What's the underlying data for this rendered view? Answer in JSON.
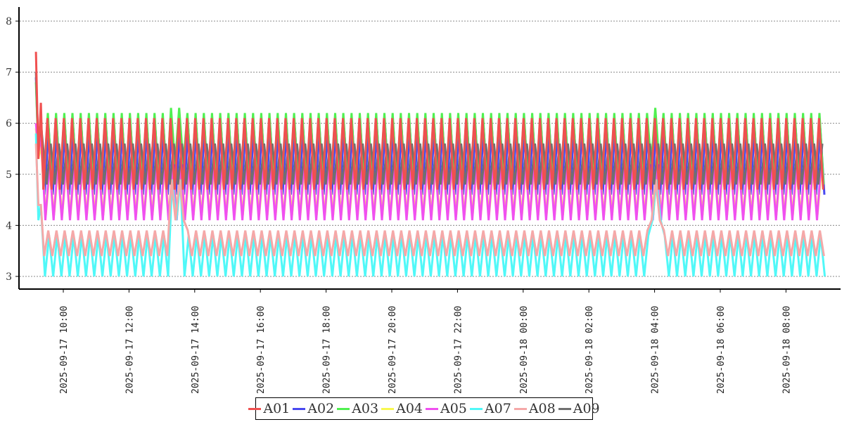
{
  "chart_data": {
    "type": "line",
    "title": "",
    "xlabel": "",
    "ylabel": "",
    "ylim": [
      2.75,
      8.3
    ],
    "yticks": [
      "3",
      "4",
      "5",
      "6",
      "7",
      "8"
    ],
    "grid": "horizontal dashed",
    "legend_placement": "bottom-center",
    "x_start": "2025-09-17 09:10",
    "x_end": "2025-09-18 09:12",
    "step_minutes": 7.5,
    "xticks": [
      "2025-09-17 10:00",
      "2025-09-17 12:00",
      "2025-09-17 14:00",
      "2025-09-17 16:00",
      "2025-09-17 18:00",
      "2025-09-17 20:00",
      "2025-09-17 22:00",
      "2025-09-18 00:00",
      "2025-09-18 02:00",
      "2025-09-18 04:00",
      "2025-09-18 06:00",
      "2025-09-18 08:00"
    ],
    "disturbances_minutes_from_start": [
      [
        245,
        270
      ],
      [
        1120,
        1145
      ]
    ],
    "series": [
      {
        "name": "A01",
        "color": "#f05050",
        "initial": [
          7.4,
          5.3,
          6.4
        ],
        "high": 6.1,
        "low": 4.7,
        "phase": 0
      },
      {
        "name": "A02",
        "color": "#4848f0",
        "initial": [
          6.9,
          5.4,
          6.0
        ],
        "high": 5.9,
        "low": 4.6,
        "phase": 0.3
      },
      {
        "name": "A03",
        "color": "#50f050",
        "initial": [
          6.8,
          5.4,
          6.2
        ],
        "high": 6.2,
        "low": 4.8,
        "phase": 0.1
      },
      {
        "name": "A04",
        "color": "#f8f850",
        "initial": [
          5.9,
          5.3,
          5.6
        ],
        "high": 5.1,
        "low": 4.2,
        "phase": 0.6
      },
      {
        "name": "A05",
        "color": "#f050f0",
        "initial": [
          6.0,
          5.4,
          5.8
        ],
        "high": 5.2,
        "low": 4.1,
        "phase": 0.5
      },
      {
        "name": "A07",
        "color": "#50f8f8",
        "initial": [
          5.8,
          4.1,
          4.4
        ],
        "high": 3.8,
        "low": 3.0,
        "phase": 0.4
      },
      {
        "name": "A08",
        "color": "#f5a8a8",
        "initial": [
          5.6,
          4.4,
          4.4
        ],
        "high": 3.9,
        "low": 3.4,
        "phase": 0.2
      },
      {
        "name": "A09",
        "color": "#707070",
        "initial": [
          7.0,
          5.5,
          6.0
        ],
        "high": 5.6,
        "low": 4.8,
        "phase": 0.8
      }
    ]
  }
}
